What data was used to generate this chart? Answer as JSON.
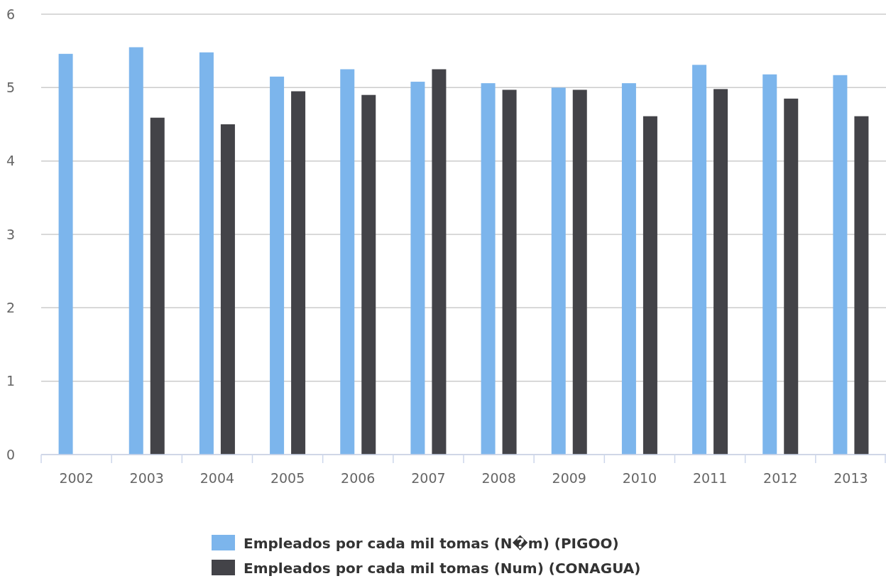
{
  "chart_data": {
    "type": "bar",
    "categories": [
      "2002",
      "2003",
      "2004",
      "2005",
      "2006",
      "2007",
      "2008",
      "2009",
      "2010",
      "2011",
      "2012",
      "2013"
    ],
    "series": [
      {
        "name": "Empleados por cada mil tomas (N�m) (PIGOO)",
        "color": "#7cb5ec",
        "values": [
          5.46,
          5.55,
          5.48,
          5.15,
          5.25,
          5.08,
          5.06,
          5.0,
          5.06,
          5.31,
          5.18,
          5.17
        ]
      },
      {
        "name": "Empleados por cada mil tomas (Num) (CONAGUA)",
        "color": "#434348",
        "values": [
          null,
          4.59,
          4.5,
          4.95,
          4.9,
          5.25,
          4.97,
          4.97,
          4.61,
          4.98,
          4.85,
          4.61
        ]
      }
    ],
    "ylim": [
      0,
      6
    ],
    "yticks": [
      0,
      1,
      2,
      3,
      4,
      5,
      6
    ],
    "grid": "y",
    "legend": "bottom"
  }
}
